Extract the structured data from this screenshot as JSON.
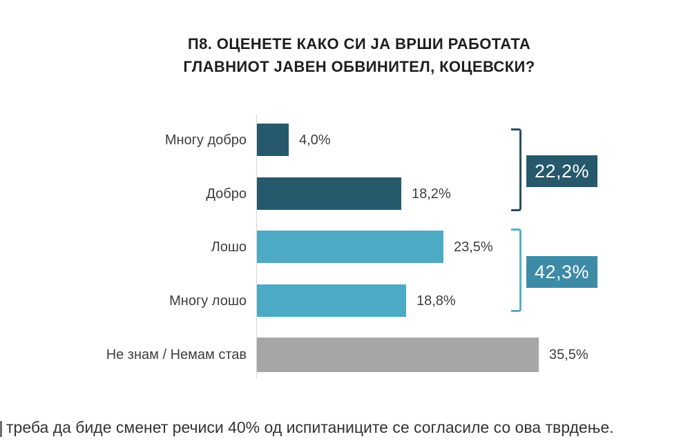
{
  "chart_data": {
    "type": "bar",
    "orientation": "horizontal",
    "title": "П8. ОЦЕНЕТЕ КАКО СИ ЈА ВРШИ РАБОТАТА ГЛАВНИОТ ЈАВЕН ОБВИНИТЕЛ, КОЦЕВСКИ?",
    "title_lines": [
      "П8. ОЦЕНЕТЕ КАКО СИ ЈА ВРШИ РАБОТАТА",
      "ГЛАВНИОТ ЈАВЕН ОБВИНИТЕЛ, КОЦЕВСКИ?"
    ],
    "categories": [
      "Многу добро",
      "Добро",
      "Лошо",
      "Многу лошо",
      "Не знам / Немам став"
    ],
    "values": [
      4.0,
      18.2,
      23.5,
      18.8,
      35.5
    ],
    "value_labels": [
      "4,0%",
      "18,2%",
      "23,5%",
      "18,8%",
      "35,5%"
    ],
    "bar_colors": [
      "#26596b",
      "#26596b",
      "#4caac5",
      "#4caac5",
      "#a6a6a6"
    ],
    "xlim": [
      0,
      40
    ],
    "grid": false,
    "legend": "none",
    "groups": [
      {
        "label": "22,2%",
        "value": 22.2,
        "covers": [
          "Многу добро",
          "Добро"
        ],
        "box_color": "#26596b",
        "bracket_color": "#2a505f"
      },
      {
        "label": "42,3%",
        "value": 42.3,
        "covers": [
          "Лошо",
          "Многу лошо"
        ],
        "box_color": "#3d8ba6",
        "bracket_color": "#56b0ca"
      }
    ]
  },
  "footnote": {
    "text": "треба да биде сменет речиси 40% од испитаниците се согласиле со ова тврдење."
  },
  "colors": {
    "background": "#ffffff",
    "title_text": "#1e1e1e",
    "label_text": "#3d3d3d",
    "axis_line": "#d6d6d6",
    "footnote_text": "#333333"
  }
}
